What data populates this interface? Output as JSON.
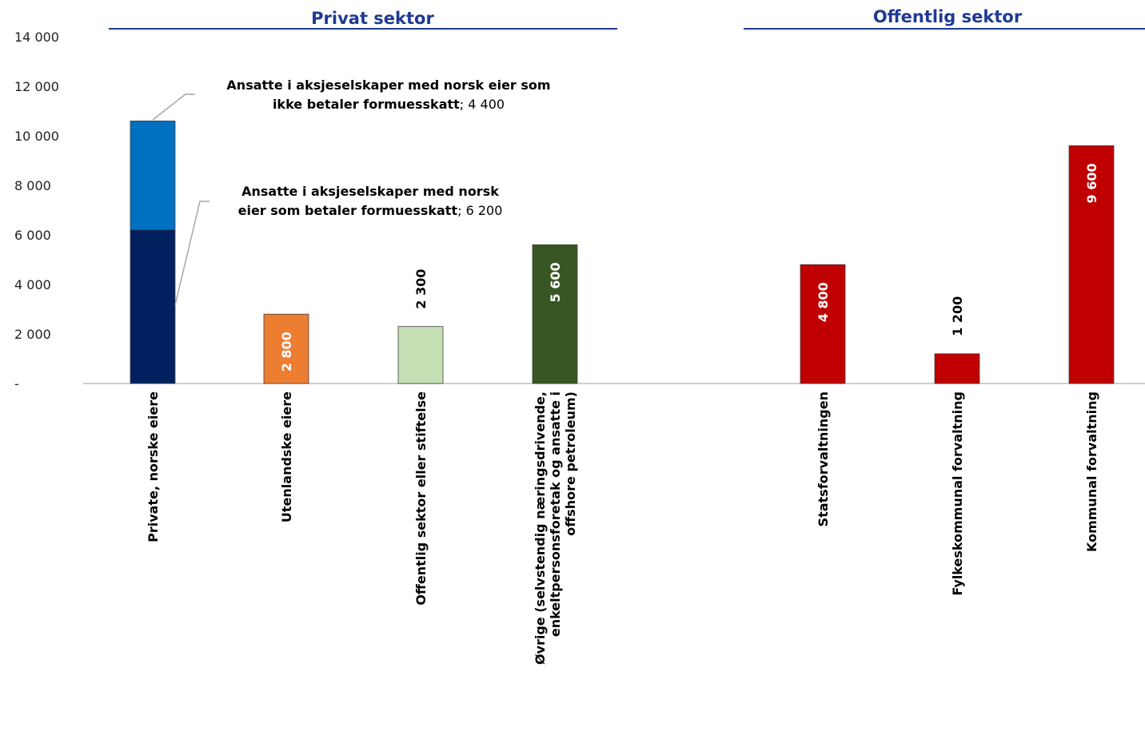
{
  "chart_data": {
    "type": "bar",
    "ylim": [
      0,
      14000
    ],
    "yticks": [
      "-",
      "2 000",
      "4 000",
      "6 000",
      "8 000",
      "10 000",
      "12 000",
      "14 000"
    ],
    "sectors": [
      {
        "label": "Privat sektor"
      },
      {
        "label": "Offentlig sektor"
      }
    ],
    "categories": [
      {
        "label_lines": [
          "Private, norske eiere"
        ],
        "segments": [
          {
            "value": 6200,
            "color": "#002060"
          },
          {
            "value": 4400,
            "color": "#0070c0"
          }
        ]
      },
      {
        "label_lines": [
          "Utenlandske eiere"
        ],
        "segments": [
          {
            "value": 2800,
            "color": "#ed7d31"
          }
        ],
        "data_label": "2 800",
        "label_inside": true,
        "label_color": "#ffffff"
      },
      {
        "label_lines": [
          "Offentlig sektor eller stiftelse"
        ],
        "segments": [
          {
            "value": 2300,
            "color": "#c5e0b4"
          }
        ],
        "data_label": "2 300",
        "label_inside": false,
        "label_color": "#000000"
      },
      {
        "label_lines": [
          "Øvrige (selvstendig næringsdrivende,",
          "enkeltpersonsforetak og ansatte i",
          "offshore petroleum)"
        ],
        "segments": [
          {
            "value": 5600,
            "color": "#375623"
          }
        ],
        "data_label": "5 600",
        "label_inside": true,
        "label_color": "#ffffff"
      },
      {
        "label_lines": [
          "Statsforvaltningen"
        ],
        "segments": [
          {
            "value": 4800,
            "color": "#c00000"
          }
        ],
        "data_label": "4 800",
        "label_inside": true,
        "label_color": "#ffffff"
      },
      {
        "label_lines": [
          "Fylkeskommunal forvaltning"
        ],
        "segments": [
          {
            "value": 1200,
            "color": "#c00000"
          }
        ],
        "data_label": "1 200",
        "label_inside": false,
        "label_color": "#000000"
      },
      {
        "label_lines": [
          "Kommunal forvaltning"
        ],
        "segments": [
          {
            "value": 9600,
            "color": "#c00000"
          }
        ],
        "data_label": "9 600",
        "label_inside": true,
        "label_color": "#ffffff"
      }
    ],
    "annotations": [
      {
        "bold_lines": [
          "Ansatte i aksjeselskaper med norsk eier som",
          "ikke betaler formuesskatt"
        ],
        "value_text": "; 4 400"
      },
      {
        "bold_lines": [
          "Ansatte i aksjeselskaper med norsk",
          "eier som betaler formuesskatt"
        ],
        "value_text": "; 6 200"
      }
    ]
  }
}
